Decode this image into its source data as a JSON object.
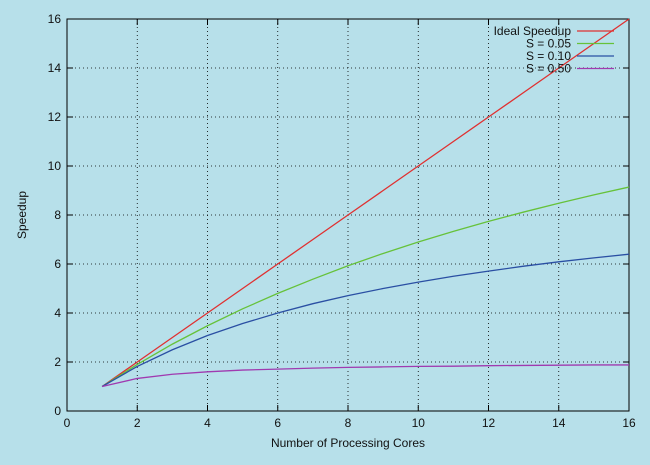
{
  "chart_data": {
    "type": "line",
    "xlabel": "Number of Processing Cores",
    "ylabel": "Speedup",
    "xlim": [
      0,
      16
    ],
    "ylim": [
      0,
      16
    ],
    "xticks": [
      0,
      2,
      4,
      6,
      8,
      10,
      12,
      14,
      16
    ],
    "yticks": [
      0,
      2,
      4,
      6,
      8,
      10,
      12,
      14,
      16
    ],
    "grid": true,
    "legend_position": "top-right",
    "x": [
      1,
      2,
      3,
      4,
      5,
      6,
      7,
      8,
      9,
      10,
      11,
      12,
      13,
      14,
      15,
      16
    ],
    "series": [
      {
        "name": "Ideal Speedup",
        "color": "#e03030",
        "values": [
          1,
          2,
          3,
          4,
          5,
          6,
          7,
          8,
          9,
          10,
          11,
          12,
          13,
          14,
          15,
          16
        ]
      },
      {
        "name": "S = 0.05",
        "color": "#66c23a",
        "values": [
          1,
          1.9,
          2.73,
          3.48,
          4.17,
          4.8,
          5.38,
          5.93,
          6.43,
          6.9,
          7.33,
          7.74,
          8.12,
          8.48,
          8.82,
          9.14
        ]
      },
      {
        "name": "S = 0.10",
        "color": "#2a4fa3",
        "values": [
          1,
          1.82,
          2.5,
          3.08,
          3.57,
          4.0,
          4.38,
          4.71,
          5.0,
          5.26,
          5.5,
          5.71,
          5.91,
          6.09,
          6.25,
          6.4
        ]
      },
      {
        "name": "S = 0.50",
        "color": "#a03ab0",
        "values": [
          1,
          1.33,
          1.5,
          1.6,
          1.67,
          1.71,
          1.75,
          1.78,
          1.8,
          1.82,
          1.83,
          1.85,
          1.86,
          1.87,
          1.88,
          1.88
        ]
      }
    ]
  }
}
